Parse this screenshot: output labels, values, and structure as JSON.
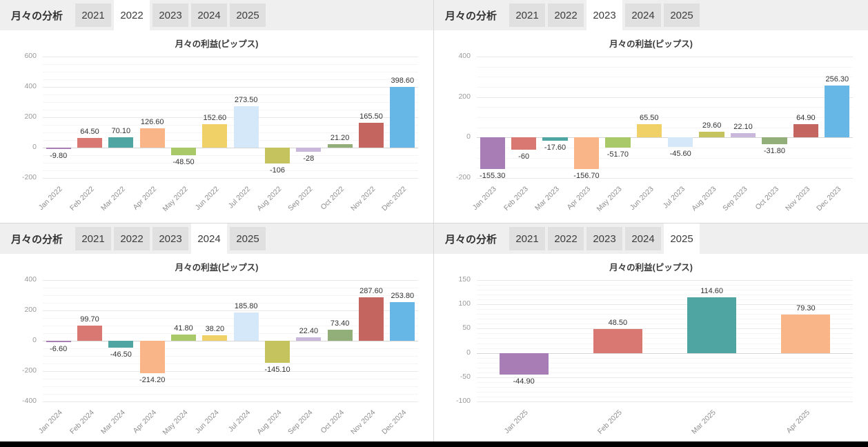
{
  "panels": [
    {
      "header": {
        "title": "月々の分析",
        "tabs": [
          "2021",
          "2022",
          "2023",
          "2024",
          "2025"
        ],
        "active_index": 1
      }
    },
    {
      "header": {
        "title": "月々の分析",
        "tabs": [
          "2021",
          "2022",
          "2023",
          "2024",
          "2025"
        ],
        "active_index": 2
      }
    },
    {
      "header": {
        "title": "月々の分析",
        "tabs": [
          "2021",
          "2022",
          "2023",
          "2024",
          "2025"
        ],
        "active_index": 3
      }
    },
    {
      "header": {
        "title": "月々の分析",
        "tabs": [
          "2021",
          "2022",
          "2023",
          "2024",
          "2025"
        ],
        "active_index": 4
      }
    }
  ],
  "chart_data": [
    {
      "type": "bar",
      "title": "月々の利益(ピップス)",
      "categories": [
        "Jan 2022",
        "Feb 2022",
        "Mar 2022",
        "Apr 2022",
        "May 2022",
        "Jun 2022",
        "Jul 2022",
        "Aug 2022",
        "Sep 2022",
        "Oct 2022",
        "Nov 2022",
        "Dec 2022"
      ],
      "values": [
        -9.8,
        64.5,
        70.1,
        126.6,
        -48.5,
        152.6,
        273.5,
        -106,
        -28,
        21.2,
        165.5,
        398.6
      ],
      "value_labels": [
        "-9.80",
        "64.50",
        "70.10",
        "126.60",
        "-48.50",
        "152.60",
        "273.50",
        "-106",
        "-28",
        "21.20",
        "165.50",
        "398.60"
      ],
      "ylim": [
        -200,
        600
      ],
      "ytick_step": 200,
      "minor_step": 50,
      "bar_pct": 0.8,
      "grid": true,
      "legend": "none"
    },
    {
      "type": "bar",
      "title": "月々の利益(ピップス)",
      "categories": [
        "Jan 2023",
        "Feb 2023",
        "Mar 2023",
        "Apr 2023",
        "May 2023",
        "Jun 2023",
        "Jul 2023",
        "Aug 2023",
        "Sep 2023",
        "Oct 2023",
        "Nov 2023",
        "Dec 2023"
      ],
      "values": [
        -155.3,
        -60,
        -17.6,
        -156.7,
        -51.7,
        65.5,
        -45.6,
        29.6,
        22.1,
        -31.8,
        64.9,
        256.3
      ],
      "value_labels": [
        "-155.30",
        "-60",
        "-17.60",
        "-156.70",
        "-51.70",
        "65.50",
        "-45.60",
        "29.60",
        "22.10",
        "-31.80",
        "64.90",
        "256.30"
      ],
      "ylim": [
        -200,
        400
      ],
      "ytick_step": 200,
      "minor_step": 50,
      "bar_pct": 0.8,
      "grid": true,
      "legend": "none"
    },
    {
      "type": "bar",
      "title": "月々の利益(ピップス)",
      "categories": [
        "Jan 2024",
        "Feb 2024",
        "Mar 2024",
        "Apr 2024",
        "May 2024",
        "Jun 2024",
        "Jul 2024",
        "Aug 2024",
        "Sep 2024",
        "Oct 2024",
        "Nov 2024",
        "Dec 2024"
      ],
      "values": [
        -6.6,
        99.7,
        -46.5,
        -214.2,
        41.8,
        38.2,
        185.8,
        -145.1,
        22.4,
        73.4,
        287.6,
        253.8
      ],
      "value_labels": [
        "-6.60",
        "99.70",
        "-46.50",
        "-214.20",
        "41.80",
        "38.20",
        "185.80",
        "-145.10",
        "22.40",
        "73.40",
        "287.60",
        "253.80"
      ],
      "ylim": [
        -400,
        400
      ],
      "ytick_step": 200,
      "minor_step": 50,
      "bar_pct": 0.8,
      "grid": true,
      "legend": "none"
    },
    {
      "type": "bar",
      "title": "月々の利益(ピップス)",
      "categories": [
        "Jan 2025",
        "Feb 2025",
        "Mar 2025",
        "Apr 2025"
      ],
      "values": [
        -44.9,
        48.5,
        114.6,
        79.3
      ],
      "value_labels": [
        "-44.90",
        "48.50",
        "114.60",
        "79.30"
      ],
      "ylim": [
        -100,
        150
      ],
      "ytick_step": 50,
      "minor_step": 10,
      "bar_pct": 0.52,
      "grid": true,
      "legend": "none"
    }
  ],
  "palette": {
    "bar_colors": [
      "#a87cb5",
      "#d97873",
      "#4ea5a2",
      "#f9b588",
      "#a9c868",
      "#f0d168",
      "#d5e8fa",
      "#c5c35e",
      "#c9b7dc",
      "#92ae79",
      "#c4665f",
      "#66b6e6"
    ],
    "grid_major": "#e9e7e8",
    "grid_minor": "#f6f4f4",
    "zero_line": "#d6d6d6",
    "axis_label_color": "#8e8e8e",
    "value_label_color": "#333333",
    "header_bg": "#efefef",
    "tab_bg": "#e0e0e0",
    "tab_active_bg": "#ffffff"
  }
}
